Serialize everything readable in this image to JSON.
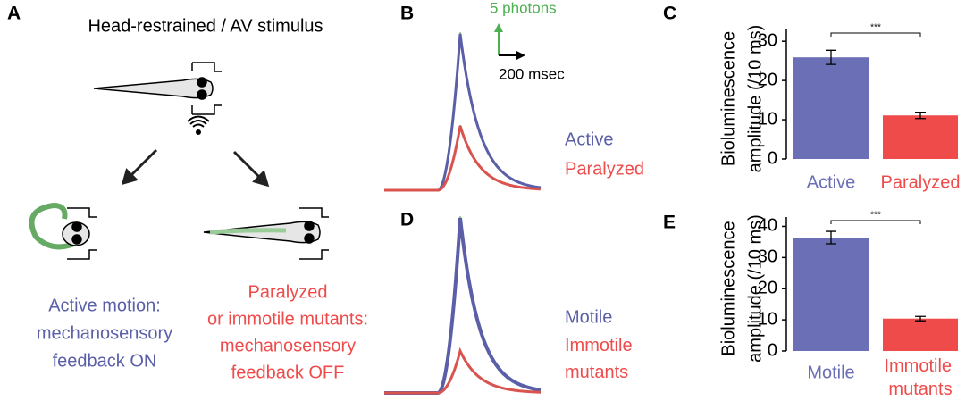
{
  "panels": {
    "A": {
      "label": "A",
      "title": "Head-restrained / AV stimulus",
      "active_text": [
        "Active motion:",
        "mechanosensory",
        "feedback ON"
      ],
      "paralyzed_text": [
        "Paralyzed",
        "or immotile mutants:",
        "mechanosensory",
        "feedback OFF"
      ]
    },
    "B": {
      "label": "B",
      "scale_y": "5 photons",
      "scale_x": "200 msec",
      "legend": [
        "Active",
        "Paralyzed"
      ]
    },
    "D": {
      "label": "D",
      "legend": [
        "Motile",
        "Immotile mutants"
      ]
    }
  },
  "chart_data": [
    {
      "type": "bar",
      "label": "C",
      "ylabel": [
        "Bioluminescence",
        "amplitude (/10 ms)"
      ],
      "categories": [
        "Active",
        "Paralyzed"
      ],
      "values": [
        25.9,
        11.1
      ],
      "errors": [
        1.8,
        0.8
      ],
      "colors": [
        "#6b6fb5",
        "#ef4b4b"
      ],
      "ylim": [
        0,
        33
      ],
      "yticks": [
        0,
        10,
        20,
        30
      ],
      "significance": "***"
    },
    {
      "type": "bar",
      "label": "E",
      "ylabel": [
        "Bioluminescence",
        "amplitude (/10 ms)"
      ],
      "categories": [
        "Motile",
        "Immotile mutants"
      ],
      "values": [
        36.4,
        10.4
      ],
      "errors": [
        2.0,
        0.7
      ],
      "colors": [
        "#6b6fb5",
        "#ef4b4b"
      ],
      "ylim": [
        0,
        43
      ],
      "yticks": [
        0,
        10,
        20,
        30,
        40
      ],
      "significance": "***"
    }
  ]
}
